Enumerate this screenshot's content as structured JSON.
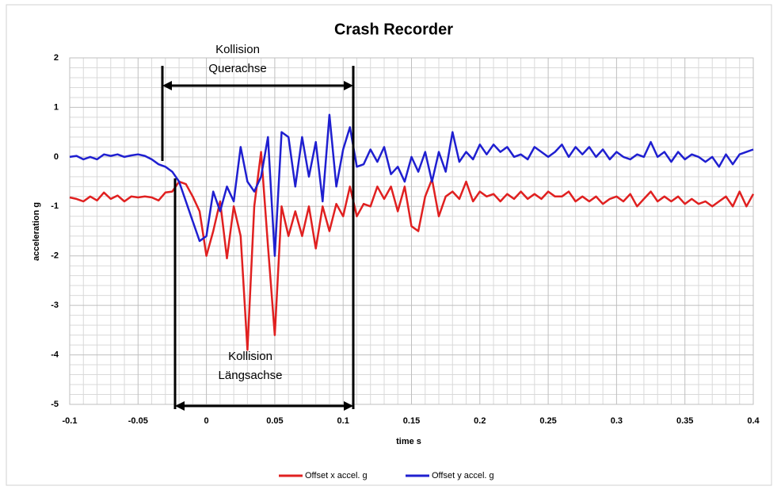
{
  "chart_data": {
    "type": "line",
    "title": "Crash Recorder",
    "xlabel": "time s",
    "ylabel": "acceleration g",
    "xlim": [
      -0.1,
      0.4
    ],
    "ylim": [
      -5,
      2
    ],
    "xticks": [
      -0.1,
      -0.05,
      0,
      0.05,
      0.1,
      0.15,
      0.2,
      0.25,
      0.3,
      0.35,
      0.4
    ],
    "yticks": [
      -5,
      -4,
      -3,
      -2,
      -1,
      0,
      1,
      2
    ],
    "grid": true,
    "legend": "bottom",
    "annotations": [
      [
        "Kollision",
        "Querachse"
      ],
      [
        "Kollision",
        "Längsachse"
      ]
    ],
    "x": [
      -0.1,
      -0.095,
      -0.09,
      -0.085,
      -0.08,
      -0.075,
      -0.07,
      -0.065,
      -0.06,
      -0.055,
      -0.05,
      -0.045,
      -0.04,
      -0.035,
      -0.03,
      -0.025,
      -0.02,
      -0.015,
      -0.01,
      -0.005,
      0,
      0.005,
      0.01,
      0.015,
      0.02,
      0.025,
      0.03,
      0.035,
      0.04,
      0.045,
      0.05,
      0.055,
      0.06,
      0.065,
      0.07,
      0.075,
      0.08,
      0.085,
      0.09,
      0.095,
      0.1,
      0.105,
      0.11,
      0.115,
      0.12,
      0.125,
      0.13,
      0.135,
      0.14,
      0.145,
      0.15,
      0.155,
      0.16,
      0.165,
      0.17,
      0.175,
      0.18,
      0.185,
      0.19,
      0.195,
      0.2,
      0.205,
      0.21,
      0.215,
      0.22,
      0.225,
      0.23,
      0.235,
      0.24,
      0.245,
      0.25,
      0.255,
      0.26,
      0.265,
      0.27,
      0.275,
      0.28,
      0.285,
      0.29,
      0.295,
      0.3,
      0.305,
      0.31,
      0.315,
      0.32,
      0.325,
      0.33,
      0.335,
      0.34,
      0.345,
      0.35,
      0.355,
      0.36,
      0.365,
      0.37,
      0.375,
      0.38,
      0.385,
      0.39,
      0.395,
      0.4
    ],
    "series": [
      {
        "name": "Offset x accel. g",
        "color": "#e02020",
        "values": [
          -0.82,
          -0.85,
          -0.9,
          -0.8,
          -0.88,
          -0.72,
          -0.85,
          -0.78,
          -0.9,
          -0.8,
          -0.82,
          -0.8,
          -0.82,
          -0.88,
          -0.72,
          -0.7,
          -0.5,
          -0.55,
          -0.8,
          -1.1,
          -2.0,
          -1.5,
          -0.9,
          -2.05,
          -1.0,
          -1.6,
          -3.9,
          -1.0,
          0.1,
          -1.8,
          -3.6,
          -1.0,
          -1.6,
          -1.1,
          -1.6,
          -1.0,
          -1.85,
          -1.0,
          -1.5,
          -0.95,
          -1.2,
          -0.6,
          -1.2,
          -0.95,
          -1.0,
          -0.6,
          -0.85,
          -0.6,
          -1.1,
          -0.6,
          -1.4,
          -1.5,
          -0.8,
          -0.45,
          -1.2,
          -0.8,
          -0.7,
          -0.85,
          -0.5,
          -0.9,
          -0.7,
          -0.8,
          -0.75,
          -0.9,
          -0.75,
          -0.85,
          -0.7,
          -0.85,
          -0.75,
          -0.85,
          -0.7,
          -0.8,
          -0.8,
          -0.7,
          -0.9,
          -0.8,
          -0.9,
          -0.8,
          -0.95,
          -0.85,
          -0.8,
          -0.9,
          -0.75,
          -1.0,
          -0.85,
          -0.7,
          -0.9,
          -0.8,
          -0.9,
          -0.8,
          -0.95,
          -0.85,
          -0.95,
          -0.9,
          -1.0,
          -0.9,
          -0.8,
          -1.0,
          -0.7,
          -1.0,
          -0.75
        ]
      },
      {
        "name": "Offset y accel. g",
        "color": "#1f1fd0",
        "values": [
          0.0,
          0.02,
          -0.05,
          0.0,
          -0.05,
          0.05,
          0.02,
          0.05,
          0.0,
          0.03,
          0.05,
          0.02,
          -0.05,
          -0.15,
          -0.2,
          -0.3,
          -0.5,
          -0.9,
          -1.3,
          -1.7,
          -1.6,
          -0.7,
          -1.1,
          -0.6,
          -0.9,
          0.2,
          -0.5,
          -0.7,
          -0.4,
          0.4,
          -2.0,
          0.5,
          0.4,
          -0.6,
          0.4,
          -0.4,
          0.3,
          -0.9,
          0.85,
          -0.6,
          0.15,
          0.6,
          -0.2,
          -0.15,
          0.15,
          -0.1,
          0.2,
          -0.35,
          -0.2,
          -0.5,
          0.0,
          -0.3,
          0.1,
          -0.5,
          0.1,
          -0.3,
          0.5,
          -0.1,
          0.1,
          -0.05,
          0.25,
          0.05,
          0.25,
          0.1,
          0.2,
          0.0,
          0.05,
          -0.05,
          0.2,
          0.1,
          0.0,
          0.1,
          0.25,
          0.0,
          0.2,
          0.05,
          0.2,
          0.0,
          0.15,
          -0.05,
          0.1,
          0.0,
          -0.05,
          0.05,
          0.0,
          0.3,
          0.0,
          0.1,
          -0.1,
          0.1,
          -0.05,
          0.05,
          0.0,
          -0.1,
          0.0,
          -0.2,
          0.05,
          -0.15,
          0.05,
          0.1,
          0.15
        ]
      }
    ]
  }
}
